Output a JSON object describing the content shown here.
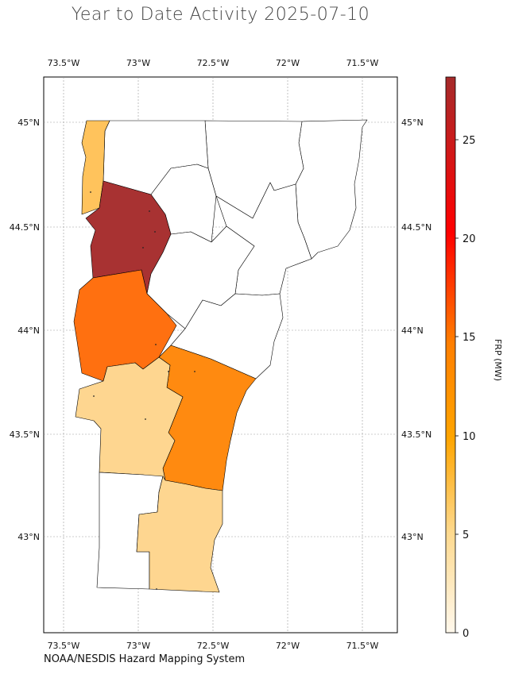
{
  "title": "Year to Date Activity 2025-07-10",
  "credit": "NOAA/NESDIS Hazard Mapping System",
  "colorbar": {
    "label": "FRP (MW)",
    "ticks": [
      "0",
      "5",
      "10",
      "15",
      "20",
      "25"
    ],
    "range": [
      0,
      28.2
    ],
    "colors": [
      "#fff8ec",
      "#fed98e",
      "#ffa500",
      "#ff7f00",
      "#ff0000",
      "#cc1a1a",
      "#a52a2a"
    ]
  },
  "axes": {
    "lon_ticks": [
      "73.5°W",
      "73°W",
      "72.5°W",
      "72°W",
      "71.5°W"
    ],
    "lat_ticks": [
      "45°N",
      "44.5°N",
      "44°N",
      "43.5°N",
      "43°N"
    ],
    "grid": true
  },
  "map_data": {
    "region": "Vermont",
    "colors": {
      "frp_0": "#ffffff",
      "frp_4": "#ffc35c",
      "frp_28": "#a83232",
      "frp_13": "#ff7010",
      "frp_12": "#ff8a10",
      "frp_3": "#fed690"
    }
  }
}
